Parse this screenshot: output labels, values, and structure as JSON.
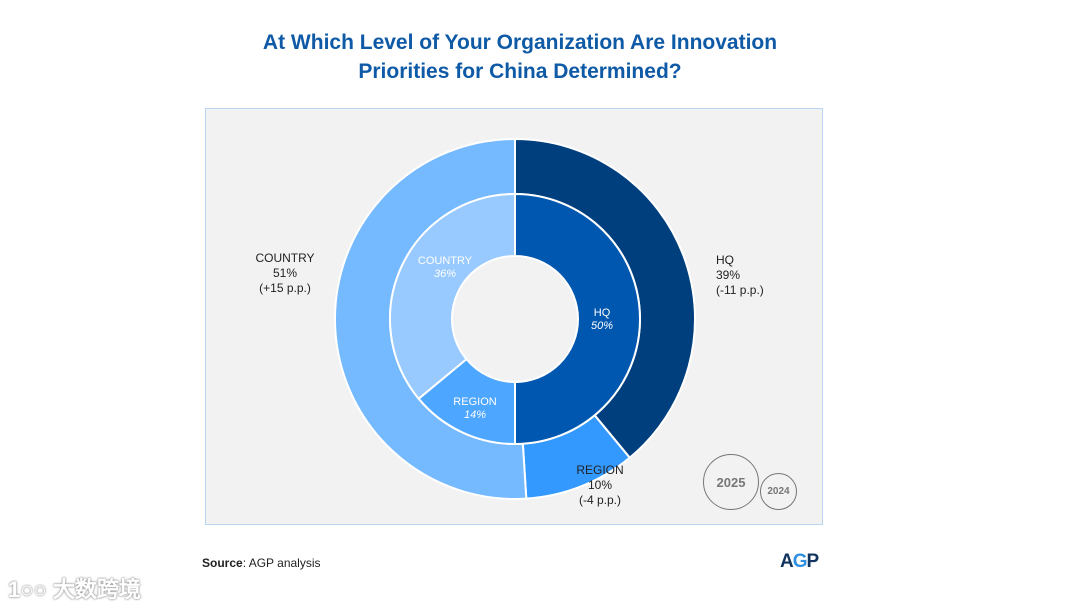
{
  "title_line1": "At Which Level of Your Organization Are Innovation",
  "title_line2": "Priorities for China Determined?",
  "chart_data": {
    "type": "donut",
    "title": "At Which Level of Your Organization Are Innovation Priorities for China Determined?",
    "series": [
      {
        "name": "2025",
        "ring": "outer",
        "categories": [
          "HQ",
          "REGION",
          "COUNTRY"
        ],
        "values": [
          39,
          10,
          51
        ],
        "changes": [
          "(-11 p.p.)",
          "(-4 p.p.)",
          "(+15 p.p.)"
        ],
        "colors": [
          "#003f7d",
          "#3399ff",
          "#75b9ff"
        ]
      },
      {
        "name": "2024",
        "ring": "inner",
        "categories": [
          "HQ",
          "REGION",
          "COUNTRY"
        ],
        "values": [
          50,
          14,
          36
        ],
        "colors": [
          "#0057b0",
          "#4da6ff",
          "#99caff"
        ]
      }
    ],
    "legend": [
      "2025",
      "2024"
    ]
  },
  "source_label": "Source",
  "source_text": ": AGP analysis",
  "logo": "AGP",
  "watermark": "大数跨境"
}
